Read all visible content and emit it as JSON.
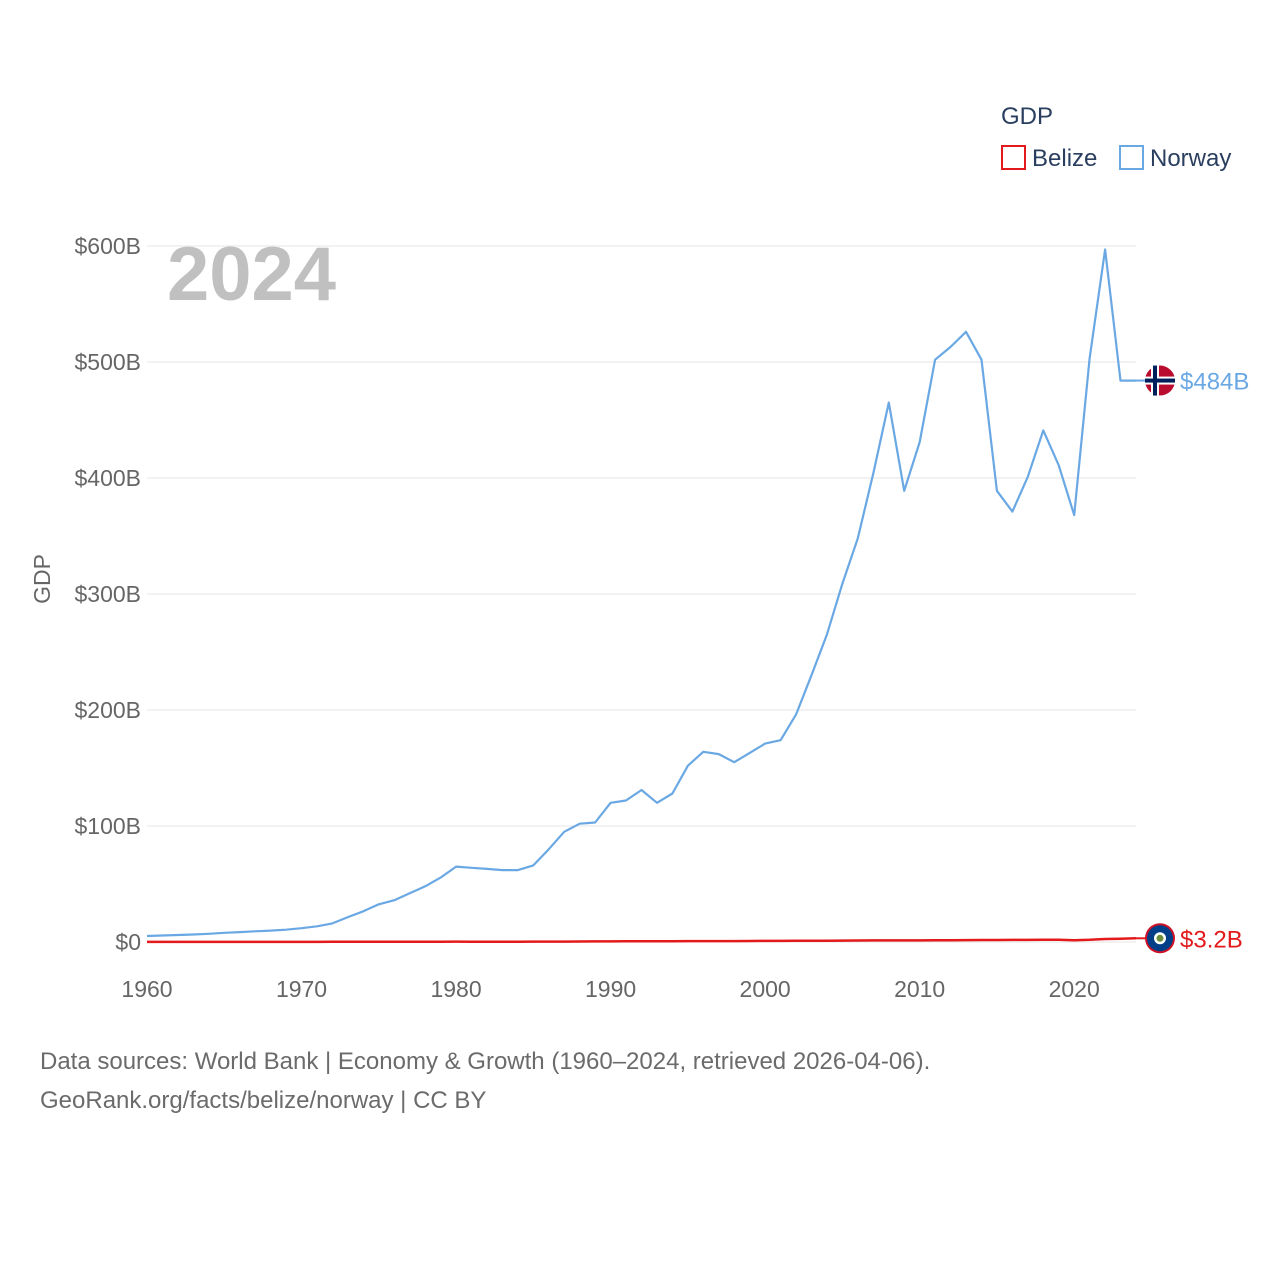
{
  "chart_data": {
    "type": "line",
    "year_label": "2024",
    "ylabel": "GDP",
    "xlabel": "",
    "xlim": [
      1960,
      2024
    ],
    "ylim": [
      0,
      600
    ],
    "y_unit": "billion USD",
    "x_ticks": [
      {
        "value": 1960,
        "label": "1960"
      },
      {
        "value": 1970,
        "label": "1970"
      },
      {
        "value": 1980,
        "label": "1980"
      },
      {
        "value": 1990,
        "label": "1990"
      },
      {
        "value": 2000,
        "label": "2000"
      },
      {
        "value": 2010,
        "label": "2010"
      },
      {
        "value": 2020,
        "label": "2020"
      }
    ],
    "y_ticks": [
      {
        "value": 0,
        "label": "$0"
      },
      {
        "value": 100,
        "label": "$100B"
      },
      {
        "value": 200,
        "label": "$200B"
      },
      {
        "value": 300,
        "label": "$300B"
      },
      {
        "value": 400,
        "label": "$400B"
      },
      {
        "value": 500,
        "label": "$500B"
      },
      {
        "value": 600,
        "label": "$600B"
      }
    ],
    "legend": {
      "title": "GDP",
      "placement": "top-right"
    },
    "x": [
      1960,
      1961,
      1962,
      1963,
      1964,
      1965,
      1966,
      1967,
      1968,
      1969,
      1970,
      1971,
      1972,
      1973,
      1974,
      1975,
      1976,
      1977,
      1978,
      1979,
      1980,
      1981,
      1982,
      1983,
      1984,
      1985,
      1986,
      1987,
      1988,
      1989,
      1990,
      1991,
      1992,
      1993,
      1994,
      1995,
      1996,
      1997,
      1998,
      1999,
      2000,
      2001,
      2002,
      2003,
      2004,
      2005,
      2006,
      2007,
      2008,
      2009,
      2010,
      2011,
      2012,
      2013,
      2014,
      2015,
      2016,
      2017,
      2018,
      2019,
      2020,
      2021,
      2022,
      2023,
      2024
    ],
    "series": [
      {
        "name": "Belize",
        "color": "#e31a1c",
        "end_label": "$3.2B",
        "flag": "belize",
        "values": [
          0.05,
          0.06,
          0.06,
          0.07,
          0.07,
          0.08,
          0.08,
          0.09,
          0.1,
          0.1,
          0.11,
          0.12,
          0.13,
          0.14,
          0.18,
          0.2,
          0.18,
          0.21,
          0.24,
          0.28,
          0.32,
          0.3,
          0.26,
          0.28,
          0.3,
          0.31,
          0.33,
          0.38,
          0.43,
          0.5,
          0.56,
          0.59,
          0.66,
          0.7,
          0.71,
          0.74,
          0.76,
          0.79,
          0.8,
          0.86,
          0.93,
          0.96,
          1.0,
          1.05,
          1.12,
          1.18,
          1.28,
          1.34,
          1.4,
          1.37,
          1.4,
          1.49,
          1.57,
          1.6,
          1.71,
          1.75,
          1.78,
          1.81,
          1.86,
          1.88,
          1.58,
          1.92,
          2.55,
          2.86,
          3.2
        ]
      },
      {
        "name": "Norway",
        "color": "#6aa8e4",
        "end_label": "$484B",
        "flag": "norway",
        "values": [
          5.2,
          5.6,
          6.0,
          6.5,
          7.1,
          7.9,
          8.5,
          9.2,
          9.8,
          10.6,
          11.9,
          13.5,
          16.0,
          21.5,
          26.5,
          32.5,
          36.0,
          42.0,
          48.0,
          55.5,
          65.0,
          64.0,
          63.0,
          62.0,
          62.0,
          66.0,
          80.0,
          95.0,
          102.0,
          103.0,
          120.0,
          122.0,
          131.0,
          120.0,
          128.0,
          152.0,
          164.0,
          162.0,
          155.0,
          163.0,
          171.0,
          174.0,
          196.0,
          230.0,
          265.0,
          309.0,
          348.0,
          404.0,
          465.0,
          389.0,
          431.0,
          502.0,
          513.0,
          526.0,
          502.0,
          389.0,
          371.0,
          401.0,
          441.0,
          411.0,
          368.0,
          503.0,
          597.0,
          484.0,
          484.0
        ]
      }
    ],
    "source_line1": "Data sources: World Bank | Economy & Growth (1960–2024, retrieved 2026-04-06).",
    "source_line2": "GeoRank.org/facts/belize/norway | CC BY"
  }
}
